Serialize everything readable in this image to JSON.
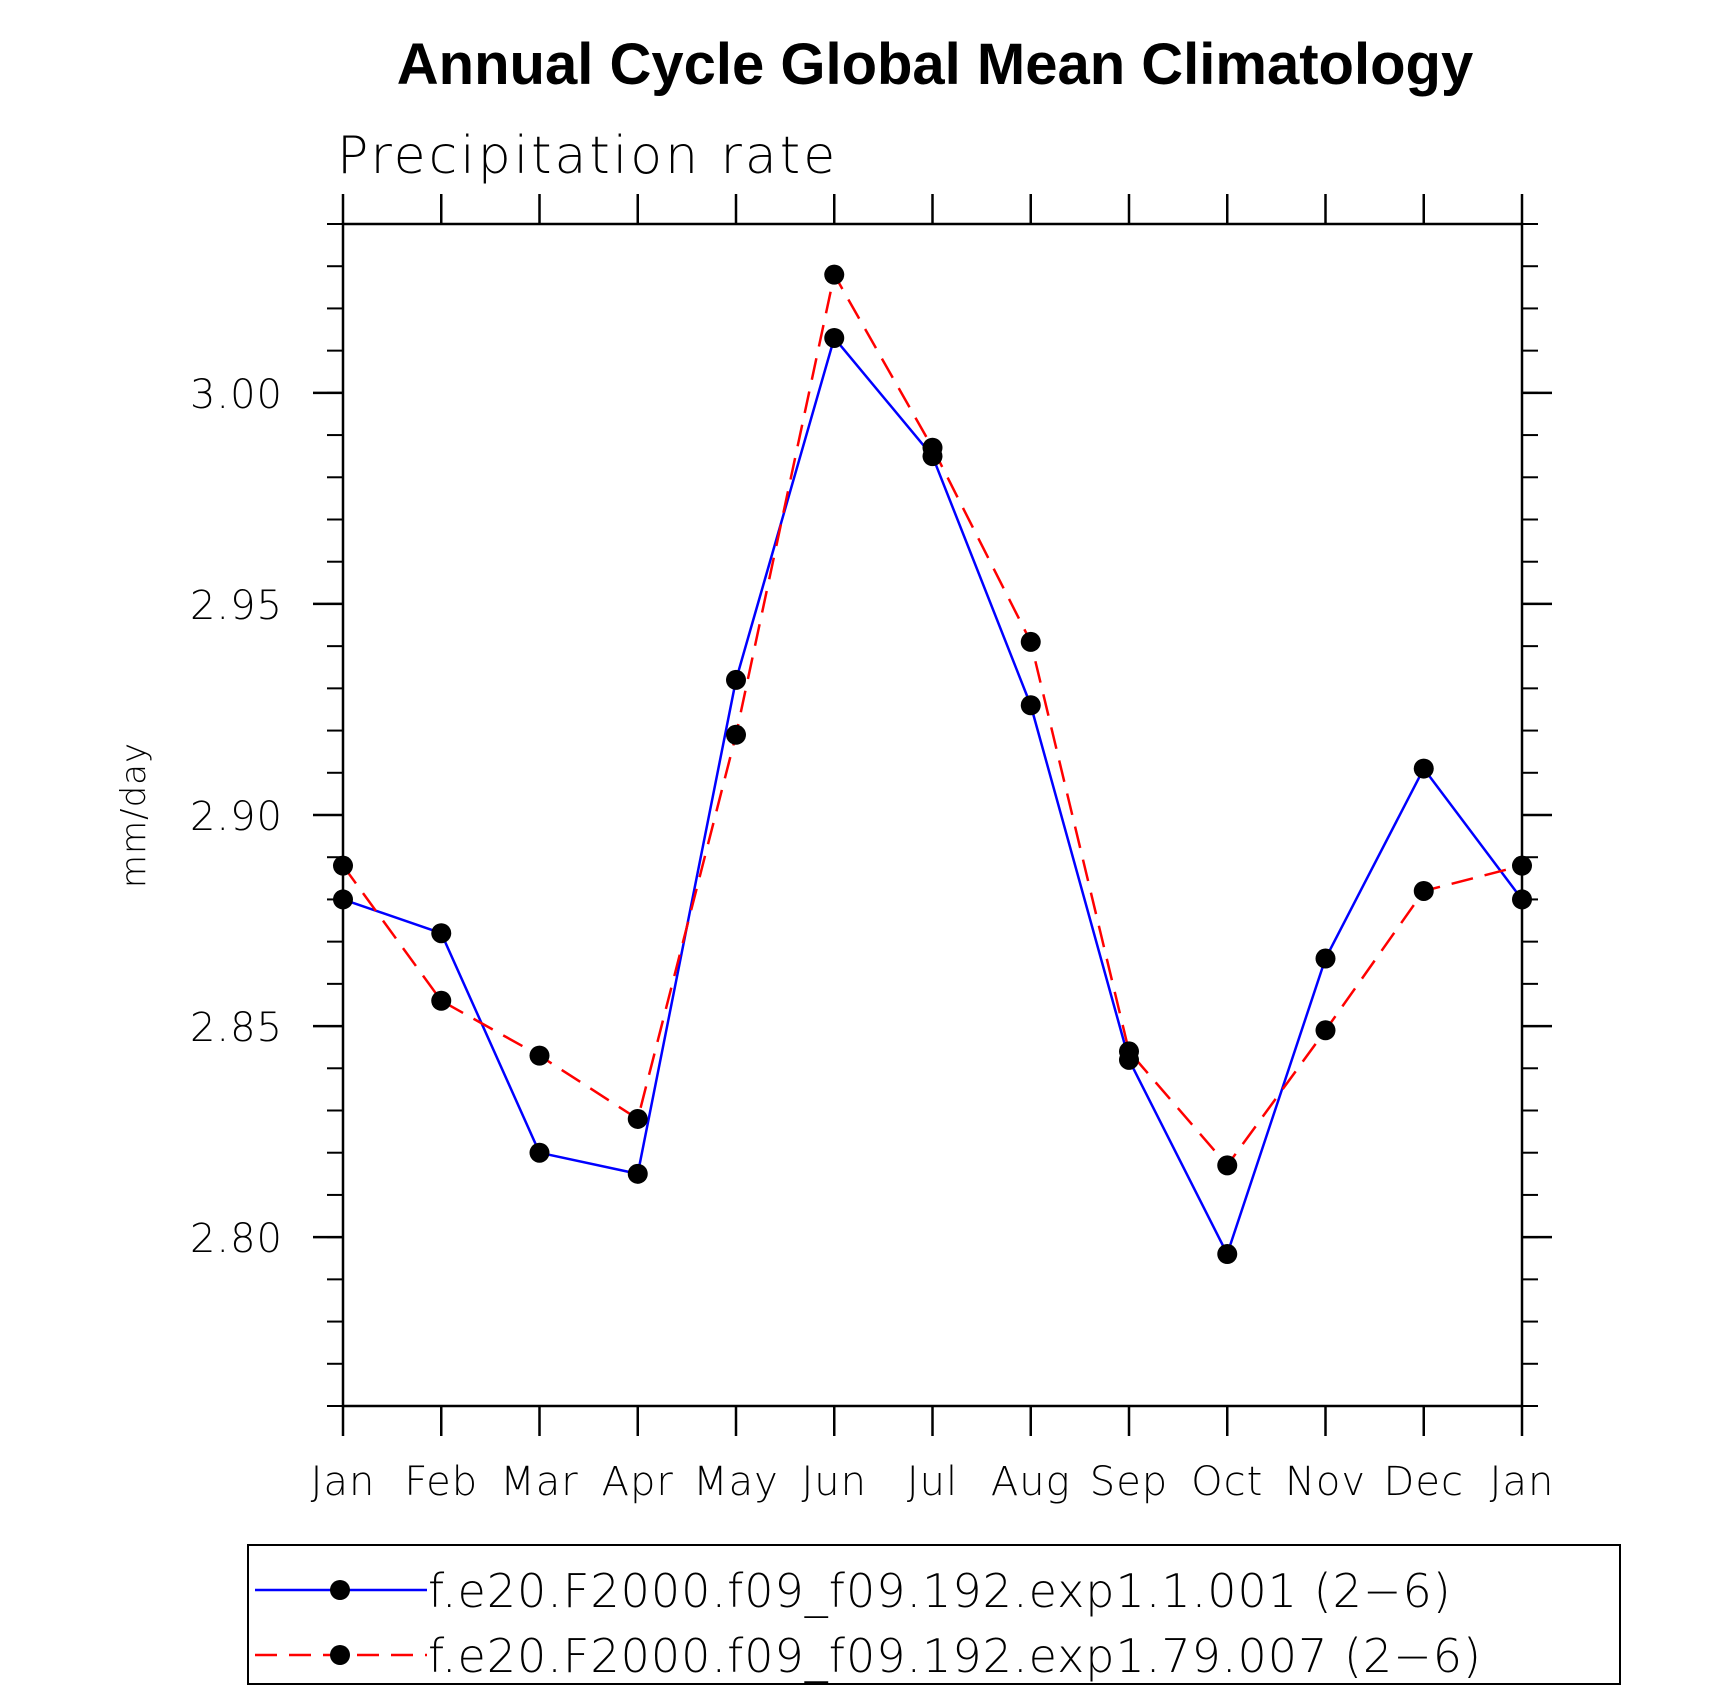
{
  "chart_data": {
    "type": "line",
    "title": "Annual Cycle Global Mean Climatology",
    "subtitle": "Precipitation rate",
    "xlabel": "",
    "ylabel": "mm/day",
    "categories": [
      "Jan",
      "Feb",
      "Mar",
      "Apr",
      "May",
      "Jun",
      "Jul",
      "Aug",
      "Sep",
      "Oct",
      "Nov",
      "Dec",
      "Jan"
    ],
    "ylim": [
      2.76,
      3.04
    ],
    "yticks": [
      2.8,
      2.85,
      2.9,
      2.95,
      3.0
    ],
    "ytick_labels": [
      "2.80",
      "2.85",
      "2.90",
      "2.95",
      "3.00"
    ],
    "y_minor_step": 0.01,
    "grid": false,
    "legend_position": "bottom",
    "series": [
      {
        "name": "f.e20.F2000.f09_f09.192.exp1.1.001 (2−6)",
        "color": "#0000ff",
        "dash": "solid",
        "marker": "circle",
        "values": [
          2.88,
          2.872,
          2.82,
          2.815,
          2.932,
          3.013,
          2.985,
          2.926,
          2.842,
          2.796,
          2.866,
          2.911,
          2.88
        ]
      },
      {
        "name": "f.e20.F2000.f09_f09.192.exp1.79.007 (2−6)",
        "color": "#ff0000",
        "dash": "dashed",
        "marker": "circle",
        "values": [
          2.888,
          2.856,
          2.843,
          2.828,
          2.919,
          3.028,
          2.987,
          2.941,
          2.844,
          2.817,
          2.849,
          2.882,
          2.888
        ]
      }
    ]
  }
}
